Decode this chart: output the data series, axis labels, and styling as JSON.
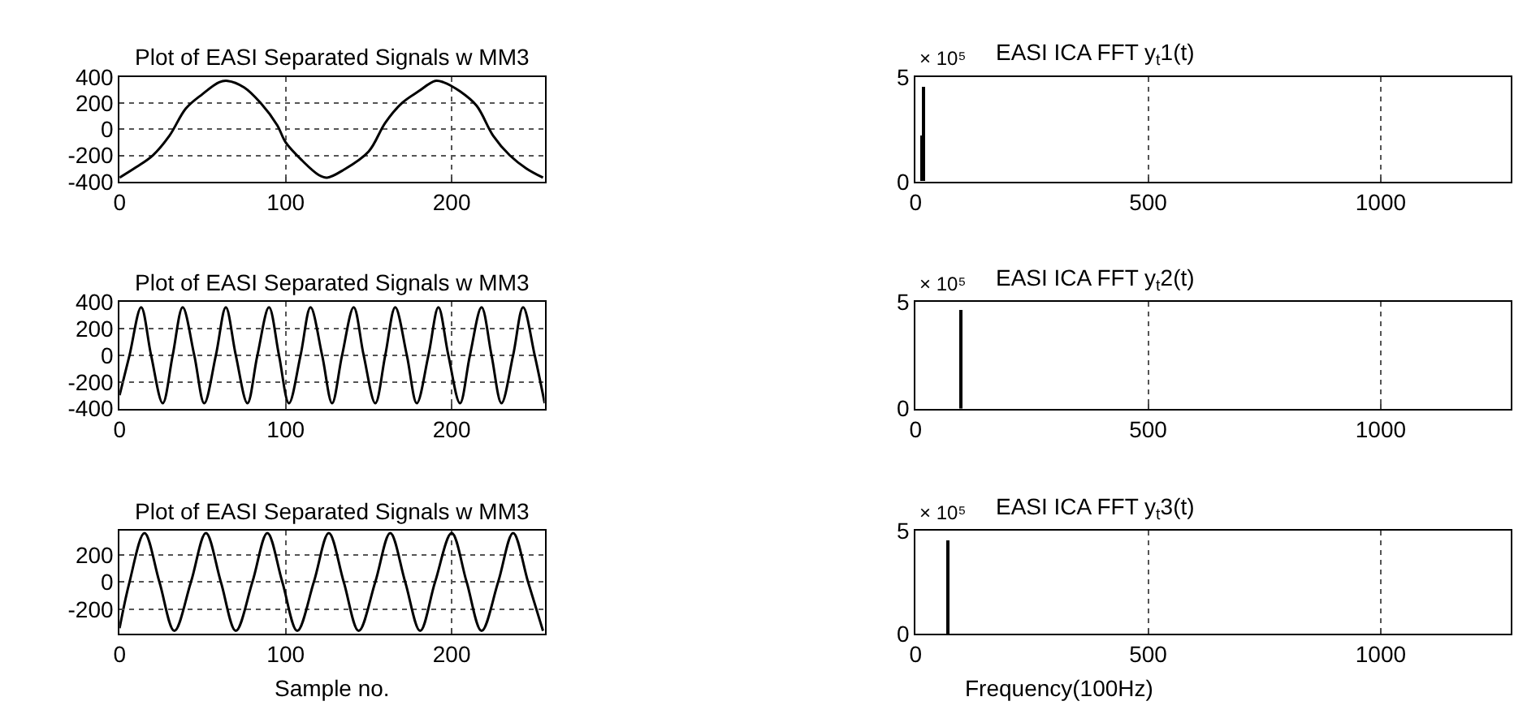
{
  "chart_data": [
    {
      "type": "line",
      "title": "Plot of EASI Separated Signals w MM3",
      "xlim": [
        0,
        256
      ],
      "xticks": [
        0,
        100,
        200
      ],
      "ylim": [
        -400,
        400
      ],
      "yticks": [
        -400,
        -200,
        0,
        200,
        400
      ],
      "grid": true,
      "line_style": "solid",
      "series": [
        {
          "color": "#000000",
          "x": [
            0,
            10,
            20,
            30,
            40,
            50,
            60,
            65,
            75,
            85,
            95,
            100,
            110,
            120,
            125,
            135,
            150,
            160,
            170,
            180,
            190,
            195,
            205,
            215,
            225,
            235,
            245,
            255
          ],
          "values": [
            -370,
            -290,
            -200,
            -50,
            160,
            270,
            360,
            370,
            320,
            200,
            30,
            -100,
            -240,
            -350,
            -370,
            -310,
            -170,
            50,
            200,
            290,
            370,
            360,
            290,
            180,
            -50,
            -200,
            -300,
            -370
          ]
        }
      ]
    },
    {
      "type": "line",
      "title": "Plot of EASI Separated Signals w MM3",
      "xlim": [
        0,
        256
      ],
      "xticks": [
        0,
        100,
        200
      ],
      "ylim": [
        -400,
        400
      ],
      "yticks": [
        -400,
        -200,
        0,
        200,
        400
      ],
      "grid": true,
      "line_style": "solid",
      "series": [
        {
          "color": "#000000",
          "x": [
            0,
            6,
            13,
            19,
            26,
            32,
            38,
            45,
            51,
            58,
            64,
            70,
            77,
            83,
            90,
            96,
            102,
            109,
            115,
            122,
            128,
            134,
            141,
            147,
            154,
            160,
            166,
            173,
            179,
            186,
            192,
            198,
            205,
            211,
            218,
            224,
            230,
            237,
            243,
            250,
            256
          ],
          "values": [
            -300,
            0,
            360,
            0,
            -360,
            0,
            360,
            0,
            -360,
            0,
            360,
            0,
            -360,
            0,
            360,
            0,
            -360,
            0,
            360,
            0,
            -360,
            0,
            360,
            0,
            -360,
            0,
            360,
            0,
            -360,
            0,
            360,
            0,
            -360,
            0,
            360,
            0,
            -360,
            0,
            360,
            0,
            -360
          ]
        }
      ]
    },
    {
      "type": "line",
      "title": "Plot of EASI Separated Signals w MM3",
      "xlabel": "Sample no.",
      "xlim": [
        0,
        256
      ],
      "xticks": [
        0,
        100,
        200
      ],
      "ylim": [
        -380,
        380
      ],
      "yticks": [
        -200,
        0,
        200
      ],
      "grid": true,
      "line_style": "solid",
      "series": [
        {
          "color": "#000000",
          "x": [
            0,
            6,
            15,
            24,
            33,
            43,
            52,
            61,
            70,
            80,
            89,
            98,
            107,
            117,
            126,
            135,
            144,
            154,
            163,
            172,
            181,
            190,
            200,
            209,
            218,
            228,
            237,
            246,
            255
          ],
          "values": [
            -340,
            0,
            360,
            0,
            -360,
            0,
            360,
            0,
            -360,
            0,
            360,
            0,
            -360,
            0,
            360,
            0,
            -360,
            0,
            360,
            0,
            -360,
            0,
            360,
            0,
            -360,
            0,
            360,
            0,
            -360
          ]
        }
      ]
    },
    {
      "type": "bar",
      "title": "EASI ICA FFT y$_{t}$1(t)",
      "annotations": [
        "× 10⁵"
      ],
      "xlim": [
        0,
        1280
      ],
      "xticks": [
        0,
        500,
        1000
      ],
      "ylim": [
        0,
        5
      ],
      "yticks": [
        0,
        5
      ],
      "grid": true,
      "series": [
        {
          "color": "#000000",
          "x": [
            15,
            18
          ],
          "values": [
            2.2,
            4.5
          ]
        }
      ]
    },
    {
      "type": "bar",
      "title": "EASI ICA FFT y$_{t}$2(t)",
      "annotations": [
        "× 10⁵"
      ],
      "xlim": [
        0,
        1280
      ],
      "xticks": [
        0,
        500,
        1000
      ],
      "ylim": [
        0,
        5
      ],
      "yticks": [
        0,
        5
      ],
      "grid": true,
      "series": [
        {
          "color": "#000000",
          "x": [
            97
          ],
          "values": [
            4.6
          ]
        }
      ]
    },
    {
      "type": "bar",
      "title": "EASI ICA FFT y$_{t}$3(t)",
      "xlabel": "Frequency(100Hz)",
      "annotations": [
        "× 10⁵"
      ],
      "xlim": [
        0,
        1280
      ],
      "xticks": [
        0,
        500,
        1000
      ],
      "ylim": [
        0,
        5
      ],
      "yticks": [
        0,
        5
      ],
      "grid": true,
      "series": [
        {
          "color": "#000000",
          "x": [
            71
          ],
          "values": [
            4.55
          ]
        }
      ]
    }
  ]
}
